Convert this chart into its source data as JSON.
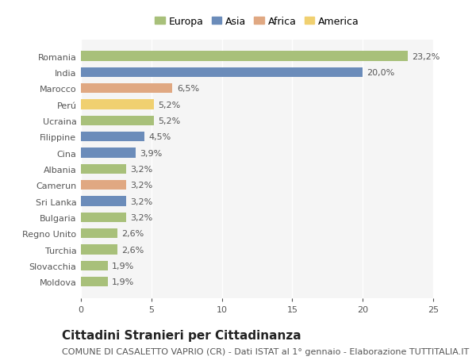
{
  "countries": [
    "Moldova",
    "Slovacchia",
    "Turchia",
    "Regno Unito",
    "Bulgaria",
    "Sri Lanka",
    "Camerun",
    "Albania",
    "Cina",
    "Filippine",
    "Ucraina",
    "Perú",
    "Marocco",
    "India",
    "Romania"
  ],
  "values": [
    1.9,
    1.9,
    2.6,
    2.6,
    3.2,
    3.2,
    3.2,
    3.2,
    3.9,
    4.5,
    5.2,
    5.2,
    6.5,
    20.0,
    23.2
  ],
  "labels": [
    "1,9%",
    "1,9%",
    "2,6%",
    "2,6%",
    "3,2%",
    "3,2%",
    "3,2%",
    "3,2%",
    "3,9%",
    "4,5%",
    "5,2%",
    "5,2%",
    "6,5%",
    "20,0%",
    "23,2%"
  ],
  "continents": [
    "Europa",
    "Europa",
    "Europa",
    "Europa",
    "Europa",
    "Asia",
    "Africa",
    "Europa",
    "Asia",
    "Asia",
    "Europa",
    "America",
    "Africa",
    "Asia",
    "Europa"
  ],
  "continent_colors": {
    "Europa": "#a8c07a",
    "Asia": "#6b8cba",
    "Africa": "#e0a882",
    "America": "#f0d070"
  },
  "legend_order": [
    "Europa",
    "Asia",
    "Africa",
    "America"
  ],
  "title": "Cittadini Stranieri per Cittadinanza",
  "subtitle": "COMUNE DI CASALETTO VAPRIO (CR) - Dati ISTAT al 1° gennaio - Elaborazione TUTTITALIA.IT",
  "xlim": [
    0,
    25
  ],
  "xticks": [
    0,
    5,
    10,
    15,
    20,
    25
  ],
  "bg_color": "#ffffff",
  "plot_bg_color": "#f5f5f5",
  "grid_color": "#ffffff",
  "bar_height": 0.6,
  "title_fontsize": 11,
  "subtitle_fontsize": 8,
  "label_fontsize": 8,
  "tick_fontsize": 8,
  "legend_fontsize": 9
}
